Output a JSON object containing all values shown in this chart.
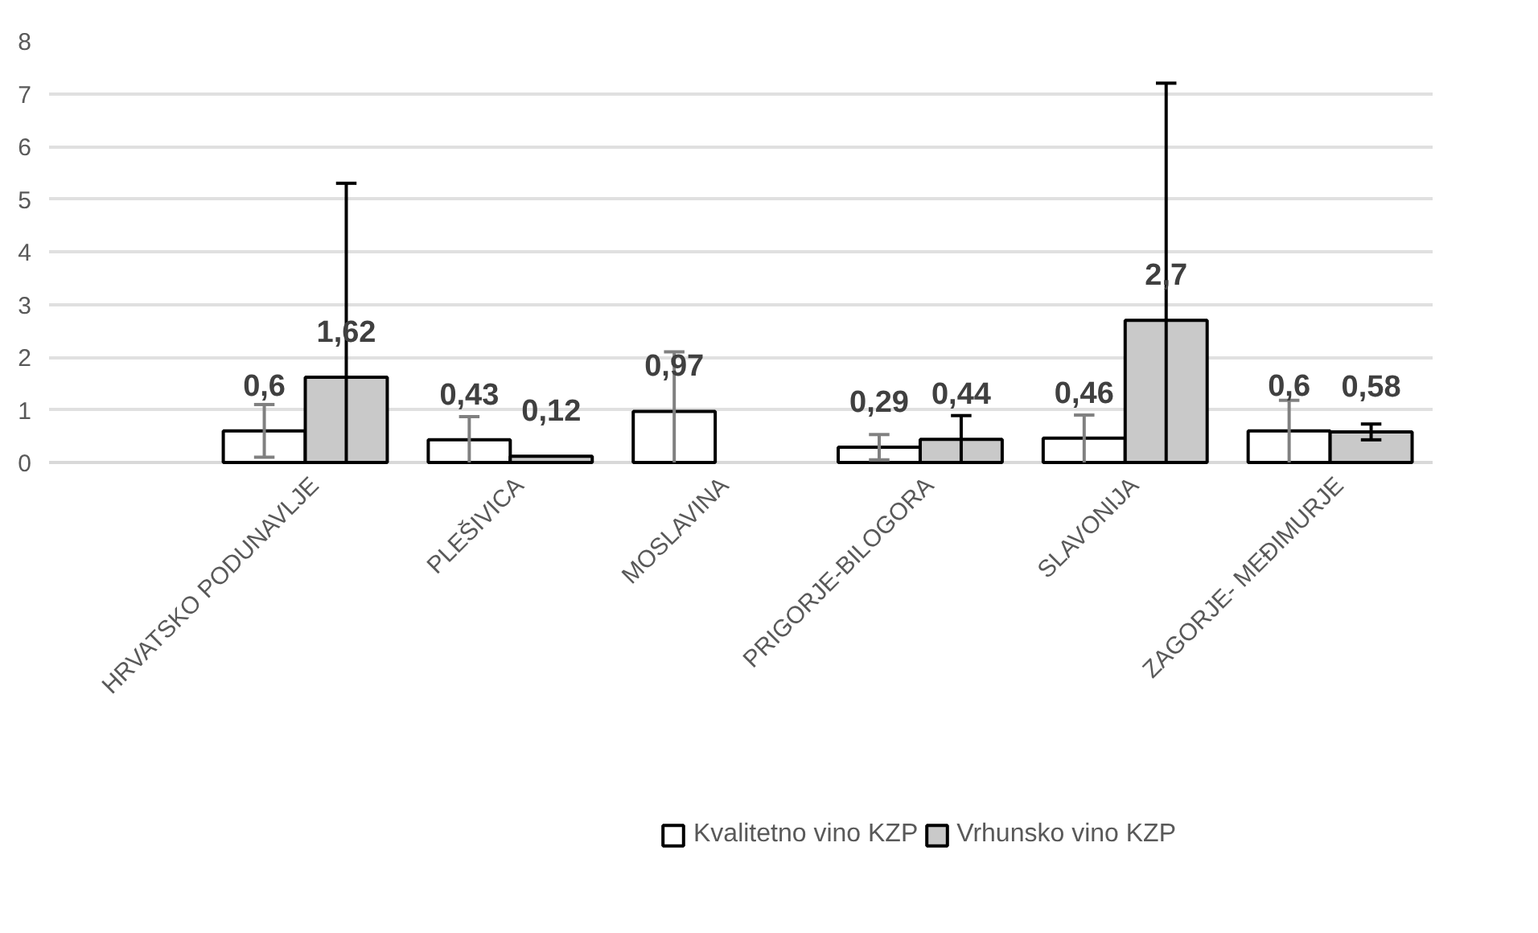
{
  "chart_data": {
    "type": "bar",
    "categories": [
      "HRVATSKO PODUNAVLJE",
      "PLEŠIVICA",
      "MOSLAVINA",
      "PRIGORJE-BILOGORA",
      "SLAVONIJA",
      "ZAGORJE- MEĐIMURJE"
    ],
    "series": [
      {
        "name": "Kvalitetno vino KZP",
        "color": "#ffffff",
        "values": [
          0.6,
          0.43,
          0.97,
          0.29,
          0.46,
          0.6
        ],
        "value_labels": [
          "0,6",
          "0,43",
          "0,97",
          "0,29",
          "0,46",
          "0,6"
        ],
        "errors": [
          [
            0.1,
            1.1
          ],
          [
            0,
            0.87
          ],
          [
            0,
            2.1
          ],
          [
            0.05,
            0.53
          ],
          [
            0,
            0.9
          ],
          [
            0,
            1.18
          ]
        ]
      },
      {
        "name": "Vrhunsko vino KZP",
        "color": "#c9c9c9",
        "values": [
          1.62,
          0.12,
          null,
          0.44,
          2.7,
          0.58
        ],
        "value_labels": [
          "1,62",
          "0,12",
          null,
          "0,44",
          "2,7",
          "0,58"
        ],
        "errors": [
          [
            0,
            5.3
          ],
          null,
          null,
          [
            0,
            0.89
          ],
          [
            0,
            7.2
          ],
          [
            0.43,
            0.73
          ]
        ]
      }
    ],
    "ylim": [
      0,
      8
    ],
    "yticks": [
      0,
      1,
      2,
      3,
      4,
      5,
      6,
      7,
      8
    ],
    "grid": "y",
    "legend": "bottom"
  }
}
